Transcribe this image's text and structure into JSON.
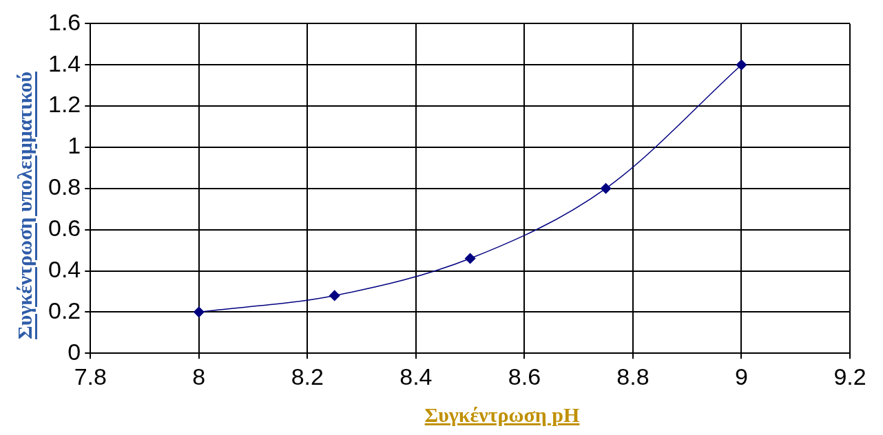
{
  "chart_data": {
    "type": "line",
    "xlabel": "Συγκέντρωση pH",
    "ylabel": "Συγκέντρωση υπολειμματικού",
    "x": [
      8,
      8.25,
      8.5,
      8.75,
      9
    ],
    "series": [
      {
        "color": "#000080",
        "values": [
          0.2,
          0.28,
          0.46,
          0.8,
          1.4
        ]
      }
    ],
    "xlim": [
      7.8,
      9.2
    ],
    "xticks": [
      7.8,
      8,
      8.2,
      8.4,
      8.6,
      8.8,
      9,
      9.2
    ],
    "ylim": [
      0,
      1.6
    ],
    "yticks": [
      0,
      0.2,
      0.4,
      0.6,
      0.8,
      1,
      1.2,
      1.4,
      1.6
    ],
    "grid": true,
    "marker": "diamond",
    "line_style": "solid",
    "legend": false
  }
}
